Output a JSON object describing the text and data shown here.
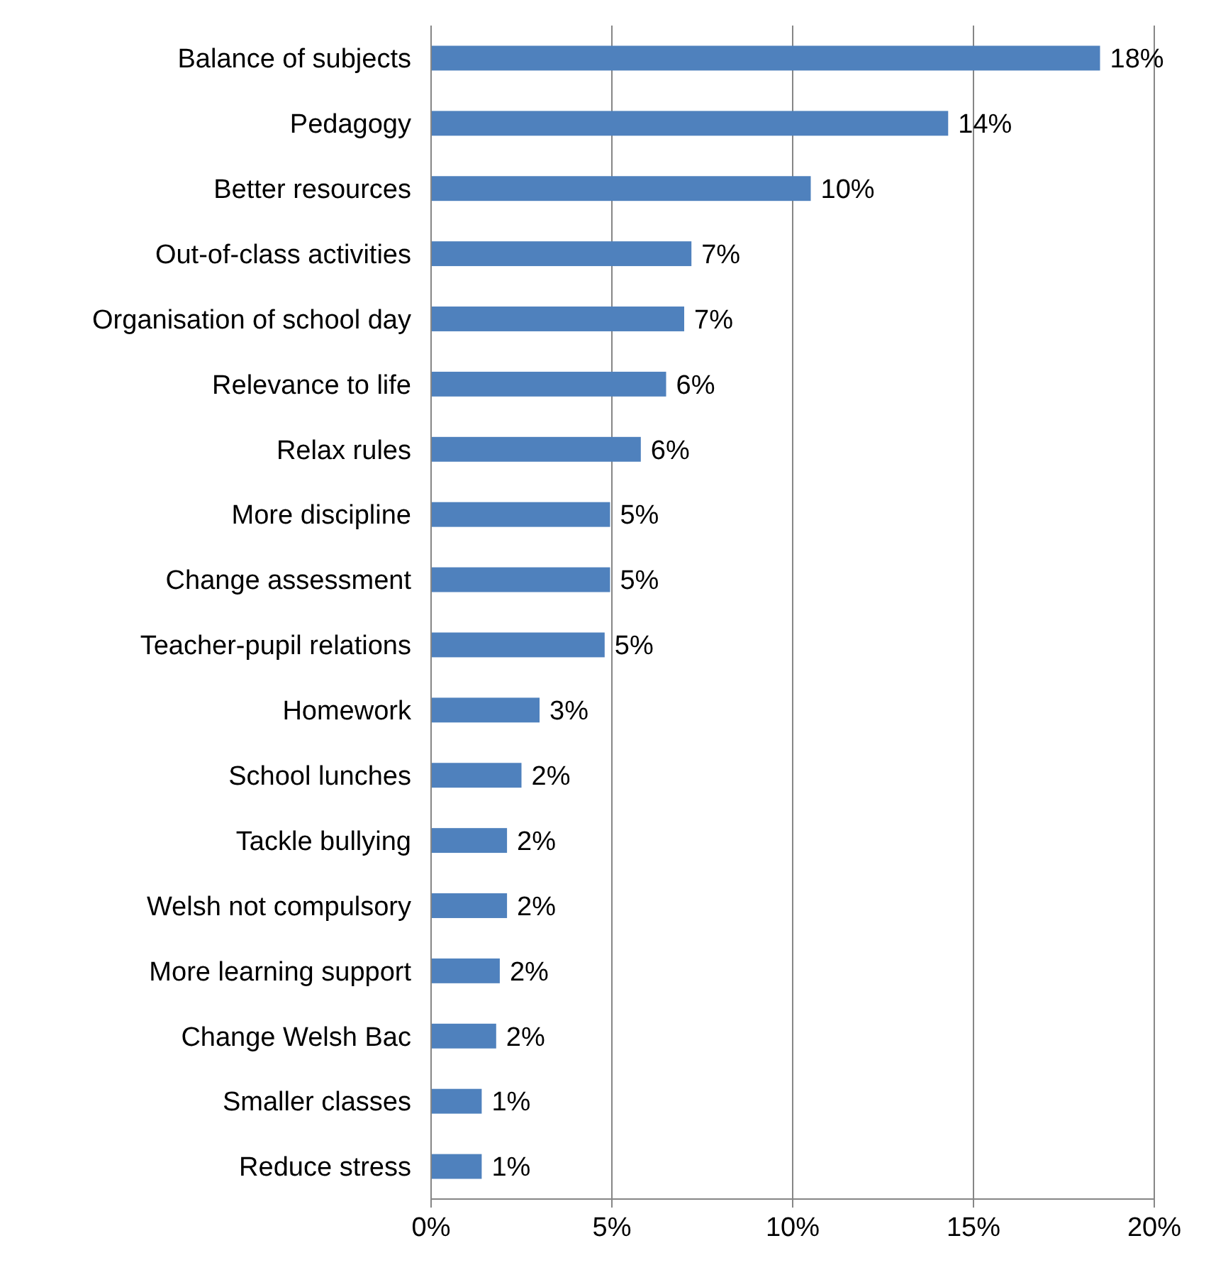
{
  "chart_data": {
    "type": "bar",
    "orientation": "horizontal",
    "categories": [
      "Balance of subjects",
      "Pedagogy",
      "Better resources",
      "Out-of-class activities",
      "Organisation of school day",
      "Relevance to life",
      "Relax rules",
      "More discipline",
      "Change assessment",
      "Teacher-pupil relations",
      "Homework",
      "School lunches",
      "Tackle bullying",
      "Welsh not compulsory",
      "More learning support",
      "Change Welsh Bac",
      "Smaller classes",
      "Reduce stress"
    ],
    "values": [
      18.5,
      14.3,
      10.5,
      7.2,
      7.0,
      6.5,
      5.8,
      4.95,
      4.95,
      4.8,
      3.0,
      2.5,
      2.1,
      2.1,
      1.9,
      1.8,
      1.4,
      1.4
    ],
    "value_labels": [
      "18%",
      "14%",
      "10%",
      "7%",
      "7%",
      "6%",
      "6%",
      "5%",
      "5%",
      "5%",
      "3%",
      "2%",
      "2%",
      "2%",
      "2%",
      "2%",
      "1%",
      "1%"
    ],
    "color": "#4f81bd",
    "xlim": [
      0,
      20
    ],
    "xticks": [
      {
        "value": 0,
        "label": "0%"
      },
      {
        "value": 5,
        "label": "5%"
      },
      {
        "value": 10,
        "label": "10%"
      },
      {
        "value": 15,
        "label": "15%"
      },
      {
        "value": 20,
        "label": "20%"
      }
    ],
    "grid": "x"
  }
}
